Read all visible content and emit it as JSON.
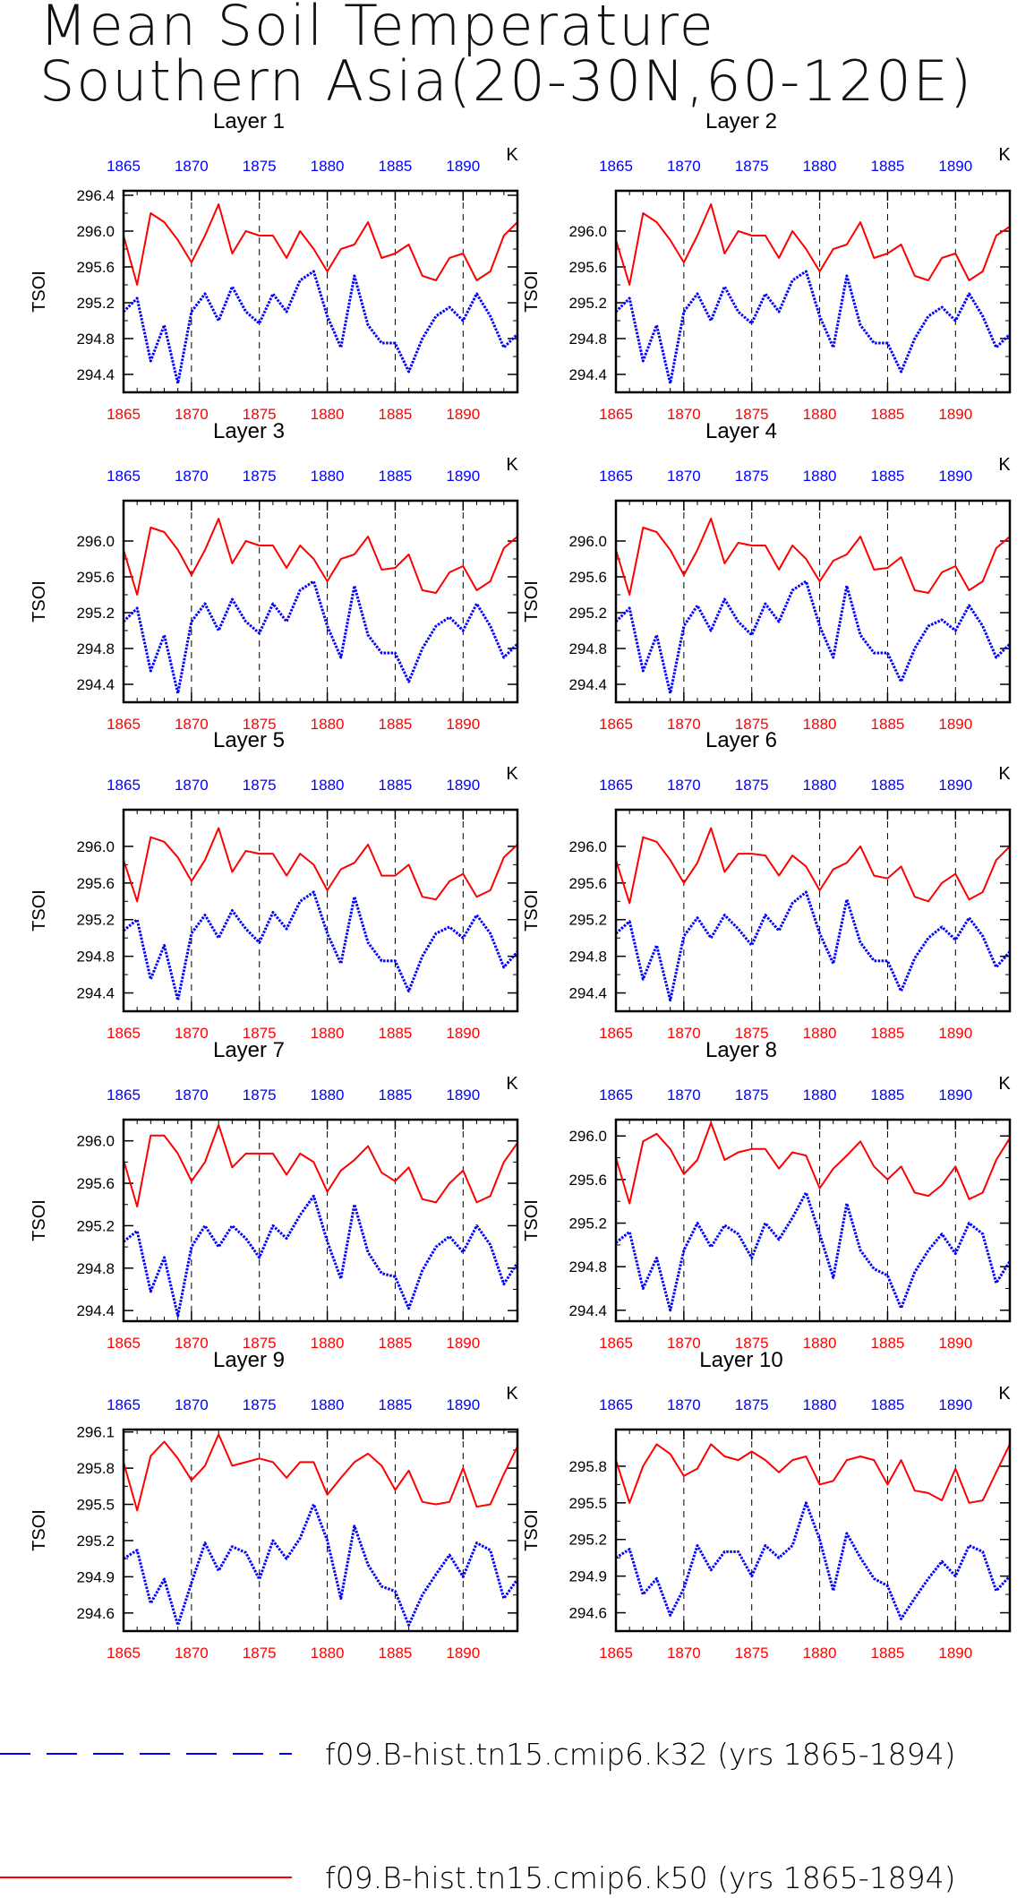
{
  "title": {
    "line1": "Mean Soil Temperature",
    "line2": "Southern Asia(20-30N,60-120E)"
  },
  "chart_data": {
    "type": "line",
    "x": [
      1865,
      1866,
      1867,
      1868,
      1869,
      1870,
      1871,
      1872,
      1873,
      1874,
      1875,
      1876,
      1877,
      1878,
      1879,
      1880,
      1881,
      1882,
      1883,
      1884,
      1885,
      1886,
      1887,
      1888,
      1889,
      1890,
      1891,
      1892,
      1893,
      1894
    ],
    "xlim": [
      1865,
      1894
    ],
    "x_tick_labels": [
      "1865",
      "1870",
      "1875",
      "1880",
      "1885",
      "1890"
    ],
    "ylabel": "TSOI",
    "unit": "K",
    "grid": "dashed vertical lines at 1870, 1875, 1880, 1885, 1890",
    "series_styles": [
      {
        "key": "k32",
        "color": "#0000ff",
        "style": "dashed"
      },
      {
        "key": "k50",
        "color": "#ff0000",
        "style": "solid"
      }
    ],
    "legend": [
      {
        "label": "f09.B-hist.tn15.cmip6.k32 (yrs 1865-1894)",
        "color": "#0000ff",
        "style": "dashed"
      },
      {
        "label": "f09.B-hist.tn15.cmip6.k50 (yrs 1865-1894)",
        "color": "#ff0000",
        "style": "solid"
      }
    ],
    "panels": [
      {
        "title": "Layer 1",
        "ylim": [
          294.2,
          296.45
        ],
        "y_ticks": [
          "294.4",
          "294.8",
          "295.2",
          "295.6",
          "296.0",
          "296.4"
        ],
        "k32": [
          295.1,
          295.25,
          294.55,
          294.95,
          294.3,
          295.1,
          295.3,
          295.0,
          295.38,
          295.1,
          294.97,
          295.3,
          295.1,
          295.45,
          295.55,
          295.05,
          294.7,
          295.5,
          294.95,
          294.75,
          294.75,
          294.43,
          294.8,
          295.05,
          295.15,
          295.0,
          295.3,
          295.05,
          294.7,
          294.85
        ],
        "k50": [
          295.95,
          295.4,
          296.2,
          296.1,
          295.9,
          295.65,
          295.95,
          296.3,
          295.75,
          296.0,
          295.95,
          295.95,
          295.7,
          296.0,
          295.8,
          295.55,
          295.8,
          295.85,
          296.1,
          295.7,
          295.75,
          295.85,
          295.5,
          295.45,
          295.7,
          295.75,
          295.45,
          295.55,
          295.95,
          296.1
        ]
      },
      {
        "title": "Layer 2",
        "ylim": [
          294.2,
          296.45
        ],
        "y_ticks": [
          "294.4",
          "294.8",
          "295.2",
          "295.6",
          "296.0"
        ],
        "k32": [
          295.1,
          295.25,
          294.55,
          294.95,
          294.3,
          295.1,
          295.3,
          295.0,
          295.38,
          295.1,
          294.97,
          295.3,
          295.1,
          295.45,
          295.55,
          295.05,
          294.7,
          295.5,
          294.95,
          294.75,
          294.75,
          294.43,
          294.8,
          295.05,
          295.15,
          295.0,
          295.3,
          295.05,
          294.7,
          294.85
        ],
        "k50": [
          295.9,
          295.4,
          296.2,
          296.1,
          295.9,
          295.65,
          295.95,
          296.3,
          295.75,
          296.0,
          295.95,
          295.95,
          295.7,
          296.0,
          295.8,
          295.55,
          295.8,
          295.85,
          296.1,
          295.7,
          295.75,
          295.85,
          295.5,
          295.45,
          295.7,
          295.75,
          295.45,
          295.55,
          295.95,
          296.05
        ]
      },
      {
        "title": "Layer 3",
        "ylim": [
          294.2,
          296.45
        ],
        "y_ticks": [
          "294.4",
          "294.8",
          "295.2",
          "295.6",
          "296.0"
        ],
        "k32": [
          295.1,
          295.25,
          294.55,
          294.95,
          294.3,
          295.1,
          295.3,
          295.0,
          295.35,
          295.1,
          294.97,
          295.3,
          295.1,
          295.45,
          295.55,
          295.05,
          294.7,
          295.5,
          294.95,
          294.75,
          294.75,
          294.43,
          294.8,
          295.05,
          295.15,
          295.0,
          295.3,
          295.05,
          294.7,
          294.85
        ],
        "k50": [
          295.9,
          295.4,
          296.15,
          296.1,
          295.9,
          295.62,
          295.9,
          296.25,
          295.75,
          296.0,
          295.95,
          295.95,
          295.7,
          295.95,
          295.8,
          295.55,
          295.8,
          295.85,
          296.05,
          295.68,
          295.7,
          295.85,
          295.45,
          295.42,
          295.65,
          295.72,
          295.45,
          295.55,
          295.92,
          296.05
        ]
      },
      {
        "title": "Layer 4",
        "ylim": [
          294.2,
          296.45
        ],
        "y_ticks": [
          "294.4",
          "294.8",
          "295.2",
          "295.6",
          "296.0"
        ],
        "k32": [
          295.1,
          295.25,
          294.55,
          294.95,
          294.3,
          295.05,
          295.28,
          295.0,
          295.35,
          295.1,
          294.95,
          295.3,
          295.1,
          295.45,
          295.55,
          295.05,
          294.7,
          295.5,
          294.95,
          294.75,
          294.75,
          294.43,
          294.8,
          295.05,
          295.12,
          295.0,
          295.28,
          295.05,
          294.7,
          294.85
        ],
        "k50": [
          295.9,
          295.4,
          296.15,
          296.1,
          295.9,
          295.62,
          295.9,
          296.25,
          295.75,
          295.98,
          295.95,
          295.95,
          295.68,
          295.95,
          295.8,
          295.55,
          295.78,
          295.85,
          296.05,
          295.68,
          295.7,
          295.82,
          295.45,
          295.42,
          295.65,
          295.72,
          295.45,
          295.55,
          295.92,
          296.05
        ]
      },
      {
        "title": "Layer 5",
        "ylim": [
          294.2,
          296.4
        ],
        "y_ticks": [
          "294.4",
          "294.8",
          "295.2",
          "295.6",
          "296.0"
        ],
        "k32": [
          295.08,
          295.2,
          294.55,
          294.92,
          294.32,
          295.05,
          295.25,
          295.0,
          295.3,
          295.1,
          294.95,
          295.28,
          295.1,
          295.4,
          295.5,
          295.05,
          294.72,
          295.45,
          294.95,
          294.75,
          294.75,
          294.42,
          294.8,
          295.05,
          295.12,
          295.0,
          295.25,
          295.05,
          294.68,
          294.85
        ],
        "k50": [
          295.85,
          295.4,
          296.1,
          296.05,
          295.88,
          295.62,
          295.85,
          296.2,
          295.72,
          295.95,
          295.92,
          295.92,
          295.68,
          295.92,
          295.8,
          295.52,
          295.75,
          295.82,
          296.02,
          295.68,
          295.68,
          295.8,
          295.45,
          295.42,
          295.62,
          295.7,
          295.45,
          295.52,
          295.88,
          296.02
        ]
      },
      {
        "title": "Layer 6",
        "ylim": [
          294.2,
          296.4
        ],
        "y_ticks": [
          "294.4",
          "294.8",
          "295.2",
          "295.6",
          "296.0"
        ],
        "k32": [
          295.05,
          295.18,
          294.55,
          294.92,
          294.32,
          295.02,
          295.22,
          295.0,
          295.25,
          295.1,
          294.92,
          295.25,
          295.08,
          295.38,
          295.5,
          295.05,
          294.72,
          295.42,
          294.95,
          294.75,
          294.75,
          294.42,
          294.78,
          295.0,
          295.12,
          294.98,
          295.22,
          295.02,
          294.68,
          294.85
        ],
        "k50": [
          295.85,
          295.38,
          296.1,
          296.05,
          295.85,
          295.6,
          295.82,
          296.2,
          295.72,
          295.92,
          295.92,
          295.9,
          295.68,
          295.9,
          295.78,
          295.52,
          295.75,
          295.82,
          296.0,
          295.68,
          295.65,
          295.78,
          295.45,
          295.4,
          295.6,
          295.7,
          295.42,
          295.5,
          295.85,
          296.0
        ]
      },
      {
        "title": "Layer 7",
        "ylim": [
          294.3,
          296.2
        ],
        "y_ticks": [
          "294.4",
          "294.8",
          "295.2",
          "295.6",
          "296.0"
        ],
        "k32": [
          295.05,
          295.15,
          294.58,
          294.9,
          294.35,
          295.0,
          295.2,
          295.0,
          295.2,
          295.08,
          294.9,
          295.2,
          295.08,
          295.3,
          295.48,
          295.05,
          294.7,
          295.4,
          294.95,
          294.75,
          294.72,
          294.42,
          294.78,
          295.0,
          295.1,
          294.95,
          295.2,
          295.02,
          294.65,
          294.85
        ],
        "k50": [
          295.82,
          295.38,
          296.05,
          296.05,
          295.88,
          295.62,
          295.8,
          296.15,
          295.75,
          295.88,
          295.88,
          295.88,
          295.68,
          295.88,
          295.8,
          295.52,
          295.72,
          295.82,
          295.95,
          295.7,
          295.62,
          295.75,
          295.45,
          295.42,
          295.6,
          295.72,
          295.42,
          295.48,
          295.8,
          295.98
        ]
      },
      {
        "title": "Layer 8",
        "ylim": [
          294.3,
          296.15
        ],
        "y_ticks": [
          "294.4",
          "294.8",
          "295.2",
          "295.6",
          "296.0"
        ],
        "k32": [
          295.02,
          295.12,
          294.6,
          294.88,
          294.4,
          294.95,
          295.2,
          294.98,
          295.18,
          295.1,
          294.88,
          295.2,
          295.05,
          295.25,
          295.48,
          295.1,
          294.7,
          295.38,
          294.95,
          294.78,
          294.72,
          294.42,
          294.75,
          294.95,
          295.1,
          294.92,
          295.2,
          295.1,
          294.65,
          294.85
        ],
        "k50": [
          295.8,
          295.38,
          295.95,
          296.02,
          295.88,
          295.65,
          295.78,
          296.12,
          295.78,
          295.85,
          295.88,
          295.88,
          295.7,
          295.85,
          295.82,
          295.52,
          295.7,
          295.82,
          295.95,
          295.72,
          295.6,
          295.72,
          295.48,
          295.45,
          295.55,
          295.72,
          295.42,
          295.48,
          295.78,
          295.98
        ]
      },
      {
        "title": "Layer 9",
        "ylim": [
          294.45,
          296.12
        ],
        "y_ticks": [
          "294.6",
          "294.9",
          "295.2",
          "295.5",
          "295.8",
          "296.1"
        ],
        "k32": [
          295.05,
          295.12,
          294.68,
          294.88,
          294.5,
          294.85,
          295.18,
          294.95,
          295.15,
          295.1,
          294.88,
          295.2,
          295.05,
          295.22,
          295.5,
          295.2,
          294.72,
          295.32,
          295.0,
          294.82,
          294.78,
          294.5,
          294.75,
          294.92,
          295.08,
          294.9,
          295.18,
          295.12,
          294.72,
          294.88
        ],
        "k50": [
          295.85,
          295.45,
          295.9,
          296.02,
          295.88,
          295.7,
          295.82,
          296.08,
          295.82,
          295.85,
          295.88,
          295.85,
          295.72,
          295.85,
          295.85,
          295.58,
          295.72,
          295.85,
          295.92,
          295.82,
          295.62,
          295.78,
          295.52,
          295.5,
          295.52,
          295.8,
          295.48,
          295.5,
          295.75,
          295.98
        ]
      },
      {
        "title": "Layer 10",
        "ylim": [
          294.45,
          296.1
        ],
        "y_ticks": [
          "294.6",
          "294.9",
          "295.2",
          "295.5",
          "295.8"
        ],
        "k32": [
          295.05,
          295.12,
          294.75,
          294.88,
          294.58,
          294.8,
          295.15,
          294.95,
          295.1,
          295.1,
          294.9,
          295.15,
          295.05,
          295.15,
          295.5,
          295.2,
          294.78,
          295.25,
          295.05,
          294.88,
          294.82,
          294.55,
          294.72,
          294.88,
          295.02,
          294.9,
          295.15,
          295.1,
          294.78,
          294.9
        ],
        "k50": [
          295.85,
          295.5,
          295.8,
          295.98,
          295.9,
          295.72,
          295.78,
          295.98,
          295.88,
          295.85,
          295.92,
          295.85,
          295.75,
          295.85,
          295.88,
          295.65,
          295.68,
          295.85,
          295.88,
          295.85,
          295.65,
          295.85,
          295.6,
          295.58,
          295.52,
          295.78,
          295.5,
          295.52,
          295.75,
          295.98
        ]
      }
    ]
  }
}
